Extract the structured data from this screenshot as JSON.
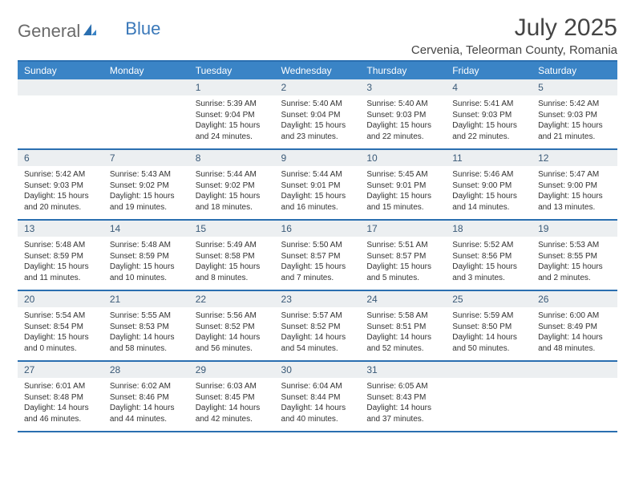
{
  "logo": {
    "general": "General",
    "blue": "Blue"
  },
  "title": "July 2025",
  "location": "Cervenia, Teleorman County, Romania",
  "colors": {
    "header_bg": "#3a84c6",
    "rule": "#2a6fb0",
    "daynum_bg": "#eceff1",
    "text": "#333333"
  },
  "weekdays": [
    "Sunday",
    "Monday",
    "Tuesday",
    "Wednesday",
    "Thursday",
    "Friday",
    "Saturday"
  ],
  "weeks": [
    [
      {
        "n": "",
        "lines": [
          "",
          "",
          ""
        ]
      },
      {
        "n": "",
        "lines": [
          "",
          "",
          ""
        ]
      },
      {
        "n": "1",
        "lines": [
          "Sunrise: 5:39 AM",
          "Sunset: 9:04 PM",
          "Daylight: 15 hours and 24 minutes."
        ]
      },
      {
        "n": "2",
        "lines": [
          "Sunrise: 5:40 AM",
          "Sunset: 9:04 PM",
          "Daylight: 15 hours and 23 minutes."
        ]
      },
      {
        "n": "3",
        "lines": [
          "Sunrise: 5:40 AM",
          "Sunset: 9:03 PM",
          "Daylight: 15 hours and 22 minutes."
        ]
      },
      {
        "n": "4",
        "lines": [
          "Sunrise: 5:41 AM",
          "Sunset: 9:03 PM",
          "Daylight: 15 hours and 22 minutes."
        ]
      },
      {
        "n": "5",
        "lines": [
          "Sunrise: 5:42 AM",
          "Sunset: 9:03 PM",
          "Daylight: 15 hours and 21 minutes."
        ]
      }
    ],
    [
      {
        "n": "6",
        "lines": [
          "Sunrise: 5:42 AM",
          "Sunset: 9:03 PM",
          "Daylight: 15 hours and 20 minutes."
        ]
      },
      {
        "n": "7",
        "lines": [
          "Sunrise: 5:43 AM",
          "Sunset: 9:02 PM",
          "Daylight: 15 hours and 19 minutes."
        ]
      },
      {
        "n": "8",
        "lines": [
          "Sunrise: 5:44 AM",
          "Sunset: 9:02 PM",
          "Daylight: 15 hours and 18 minutes."
        ]
      },
      {
        "n": "9",
        "lines": [
          "Sunrise: 5:44 AM",
          "Sunset: 9:01 PM",
          "Daylight: 15 hours and 16 minutes."
        ]
      },
      {
        "n": "10",
        "lines": [
          "Sunrise: 5:45 AM",
          "Sunset: 9:01 PM",
          "Daylight: 15 hours and 15 minutes."
        ]
      },
      {
        "n": "11",
        "lines": [
          "Sunrise: 5:46 AM",
          "Sunset: 9:00 PM",
          "Daylight: 15 hours and 14 minutes."
        ]
      },
      {
        "n": "12",
        "lines": [
          "Sunrise: 5:47 AM",
          "Sunset: 9:00 PM",
          "Daylight: 15 hours and 13 minutes."
        ]
      }
    ],
    [
      {
        "n": "13",
        "lines": [
          "Sunrise: 5:48 AM",
          "Sunset: 8:59 PM",
          "Daylight: 15 hours and 11 minutes."
        ]
      },
      {
        "n": "14",
        "lines": [
          "Sunrise: 5:48 AM",
          "Sunset: 8:59 PM",
          "Daylight: 15 hours and 10 minutes."
        ]
      },
      {
        "n": "15",
        "lines": [
          "Sunrise: 5:49 AM",
          "Sunset: 8:58 PM",
          "Daylight: 15 hours and 8 minutes."
        ]
      },
      {
        "n": "16",
        "lines": [
          "Sunrise: 5:50 AM",
          "Sunset: 8:57 PM",
          "Daylight: 15 hours and 7 minutes."
        ]
      },
      {
        "n": "17",
        "lines": [
          "Sunrise: 5:51 AM",
          "Sunset: 8:57 PM",
          "Daylight: 15 hours and 5 minutes."
        ]
      },
      {
        "n": "18",
        "lines": [
          "Sunrise: 5:52 AM",
          "Sunset: 8:56 PM",
          "Daylight: 15 hours and 3 minutes."
        ]
      },
      {
        "n": "19",
        "lines": [
          "Sunrise: 5:53 AM",
          "Sunset: 8:55 PM",
          "Daylight: 15 hours and 2 minutes."
        ]
      }
    ],
    [
      {
        "n": "20",
        "lines": [
          "Sunrise: 5:54 AM",
          "Sunset: 8:54 PM",
          "Daylight: 15 hours and 0 minutes."
        ]
      },
      {
        "n": "21",
        "lines": [
          "Sunrise: 5:55 AM",
          "Sunset: 8:53 PM",
          "Daylight: 14 hours and 58 minutes."
        ]
      },
      {
        "n": "22",
        "lines": [
          "Sunrise: 5:56 AM",
          "Sunset: 8:52 PM",
          "Daylight: 14 hours and 56 minutes."
        ]
      },
      {
        "n": "23",
        "lines": [
          "Sunrise: 5:57 AM",
          "Sunset: 8:52 PM",
          "Daylight: 14 hours and 54 minutes."
        ]
      },
      {
        "n": "24",
        "lines": [
          "Sunrise: 5:58 AM",
          "Sunset: 8:51 PM",
          "Daylight: 14 hours and 52 minutes."
        ]
      },
      {
        "n": "25",
        "lines": [
          "Sunrise: 5:59 AM",
          "Sunset: 8:50 PM",
          "Daylight: 14 hours and 50 minutes."
        ]
      },
      {
        "n": "26",
        "lines": [
          "Sunrise: 6:00 AM",
          "Sunset: 8:49 PM",
          "Daylight: 14 hours and 48 minutes."
        ]
      }
    ],
    [
      {
        "n": "27",
        "lines": [
          "Sunrise: 6:01 AM",
          "Sunset: 8:48 PM",
          "Daylight: 14 hours and 46 minutes."
        ]
      },
      {
        "n": "28",
        "lines": [
          "Sunrise: 6:02 AM",
          "Sunset: 8:46 PM",
          "Daylight: 14 hours and 44 minutes."
        ]
      },
      {
        "n": "29",
        "lines": [
          "Sunrise: 6:03 AM",
          "Sunset: 8:45 PM",
          "Daylight: 14 hours and 42 minutes."
        ]
      },
      {
        "n": "30",
        "lines": [
          "Sunrise: 6:04 AM",
          "Sunset: 8:44 PM",
          "Daylight: 14 hours and 40 minutes."
        ]
      },
      {
        "n": "31",
        "lines": [
          "Sunrise: 6:05 AM",
          "Sunset: 8:43 PM",
          "Daylight: 14 hours and 37 minutes."
        ]
      },
      {
        "n": "",
        "lines": [
          "",
          "",
          ""
        ]
      },
      {
        "n": "",
        "lines": [
          "",
          "",
          ""
        ]
      }
    ]
  ]
}
